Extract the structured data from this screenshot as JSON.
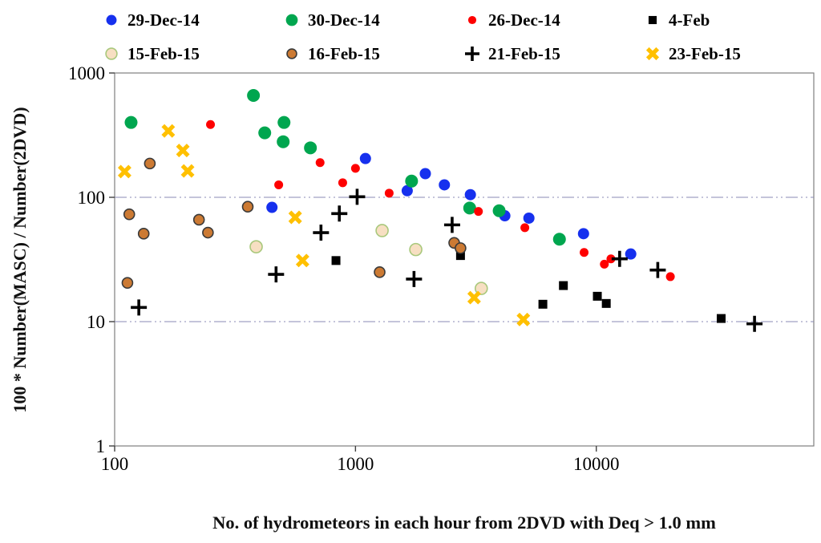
{
  "chart_data": {
    "type": "scatter",
    "title": "",
    "xlabel": "No. of hydrometeors in each hour from 2DVD with Deq > 1.0 mm",
    "ylabel": "100  * Number(MASC) / Number(2DVD)",
    "x_scale": "log",
    "y_scale": "log",
    "xlim": [
      100,
      80000
    ],
    "ylim": [
      1,
      1000
    ],
    "x_ticks": [
      100,
      1000,
      10000
    ],
    "x_tick_labels": [
      "100",
      "1000",
      "10000"
    ],
    "y_ticks": [
      1,
      10,
      100,
      1000
    ],
    "y_tick_labels": [
      "1",
      "10",
      "100",
      "1000"
    ],
    "gridlines_y": [
      10,
      100
    ],
    "grid_on": true,
    "legend_position": "top",
    "colors": {
      "grid": "#8a8ab4",
      "axis": "#7f7f7f",
      "tick": "#404040",
      "text": "#000000"
    },
    "series": [
      {
        "name": "29-Dec-14",
        "marker": "circle",
        "color": "#1630ee",
        "stroke": "none",
        "size": 7,
        "points": [
          [
            450,
            83
          ],
          [
            1100,
            205
          ],
          [
            1640,
            113
          ],
          [
            1950,
            155
          ],
          [
            2340,
            126
          ],
          [
            3000,
            105
          ],
          [
            4170,
            71
          ],
          [
            5250,
            68
          ],
          [
            8850,
            51
          ],
          [
            13900,
            35
          ]
        ]
      },
      {
        "name": "30-Dec-14",
        "marker": "circle",
        "color": "#00a64f",
        "stroke": "none",
        "size": 8,
        "points": [
          [
            117,
            400
          ],
          [
            377,
            660
          ],
          [
            420,
            330
          ],
          [
            501,
            280
          ],
          [
            505,
            400
          ],
          [
            650,
            250
          ],
          [
            1710,
            135
          ],
          [
            2980,
            82
          ],
          [
            3950,
            78
          ],
          [
            7030,
            46
          ]
        ]
      },
      {
        "name": "26-Dec-14",
        "marker": "circle",
        "color": "#fe0000",
        "stroke": "none",
        "size": 5.5,
        "points": [
          [
            250,
            385
          ],
          [
            480,
            126
          ],
          [
            713,
            190
          ],
          [
            885,
            131
          ],
          [
            1000,
            171
          ],
          [
            1380,
            108
          ],
          [
            3240,
            77
          ],
          [
            5050,
            57
          ],
          [
            8900,
            36
          ],
          [
            10800,
            29
          ],
          [
            11500,
            32
          ],
          [
            20300,
            23
          ]
        ]
      },
      {
        "name": "4-Feb",
        "marker": "square",
        "color": "#000000",
        "stroke": "none",
        "size": 5.5,
        "points": [
          [
            830,
            31
          ],
          [
            2730,
            34
          ],
          [
            6000,
            13.8
          ],
          [
            7300,
            19.5
          ],
          [
            10100,
            16
          ],
          [
            11000,
            14
          ],
          [
            33000,
            10.6
          ]
        ]
      },
      {
        "name": "15-Feb-15",
        "marker": "circle",
        "color": "#f7dfc2",
        "stroke": "#a9c87c",
        "size": 7.5,
        "points": [
          [
            387,
            40
          ],
          [
            1290,
            54
          ],
          [
            1780,
            38
          ],
          [
            3330,
            18.5
          ]
        ]
      },
      {
        "name": "16-Feb-15",
        "marker": "circle",
        "color": "#cc7a33",
        "stroke": "#3a3a3a",
        "size": 6.5,
        "points": [
          [
            113,
            20.5
          ],
          [
            115,
            73
          ],
          [
            132,
            51
          ],
          [
            140,
            187
          ],
          [
            224,
            66
          ],
          [
            244,
            52
          ],
          [
            357,
            84
          ],
          [
            1260,
            25
          ],
          [
            2570,
            43
          ],
          [
            2730,
            39
          ]
        ]
      },
      {
        "name": "21-Feb-15",
        "marker": "plus",
        "color": "#000000",
        "stroke": "#000000",
        "size": 10,
        "points": [
          [
            126,
            13
          ],
          [
            468,
            24
          ],
          [
            719,
            52
          ],
          [
            857,
            74
          ],
          [
            1016,
            101
          ],
          [
            1750,
            22
          ],
          [
            2520,
            60
          ],
          [
            12500,
            32
          ],
          [
            18000,
            26
          ],
          [
            45400,
            9.6
          ]
        ]
      },
      {
        "name": "23-Feb-15",
        "marker": "xmark",
        "color": "#ffc000",
        "stroke": "#ffc000",
        "size": 8.5,
        "points": [
          [
            110,
            161
          ],
          [
            167,
            342
          ],
          [
            192,
            238
          ],
          [
            201,
            163
          ],
          [
            562,
            69
          ],
          [
            603,
            31
          ],
          [
            3110,
            15.6
          ],
          [
            4980,
            10.4
          ]
        ]
      }
    ]
  }
}
